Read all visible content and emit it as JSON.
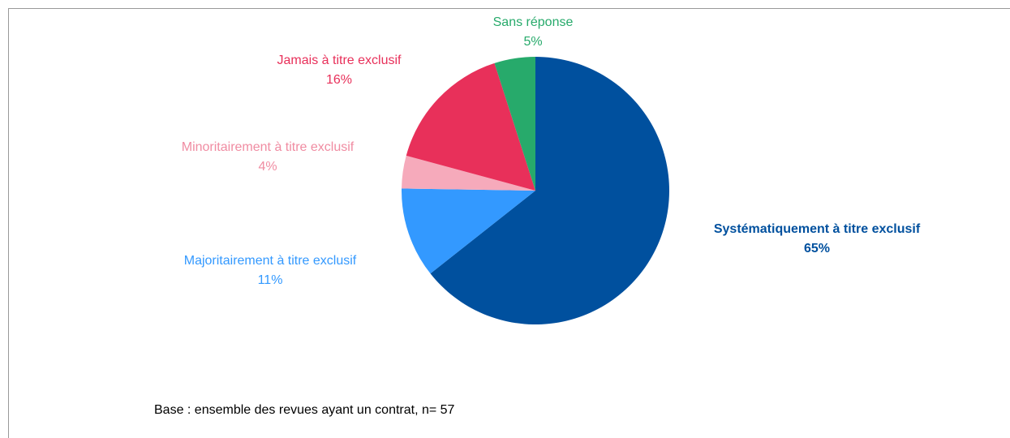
{
  "chart_data": {
    "type": "pie",
    "categories": [
      "Systématiquement à titre exclusif",
      "Majoritairement à titre exclusif",
      "Minoritairement à titre exclusif",
      "Jamais à titre exclusif",
      "Sans réponse"
    ],
    "values": [
      65,
      11,
      4,
      16,
      5
    ],
    "value_labels": [
      "65%",
      "11%",
      "4%",
      "16%",
      "5%"
    ],
    "colors": [
      "#00509e",
      "#3399ff",
      "#f6aabb",
      "#e8305a",
      "#27aa6b"
    ],
    "label_colors": [
      "#00509e",
      "#3399ff",
      "#f08ca2",
      "#e8305a",
      "#27aa6b"
    ],
    "note": "Base : ensemble des revues ayant un contrat, n= 57"
  }
}
